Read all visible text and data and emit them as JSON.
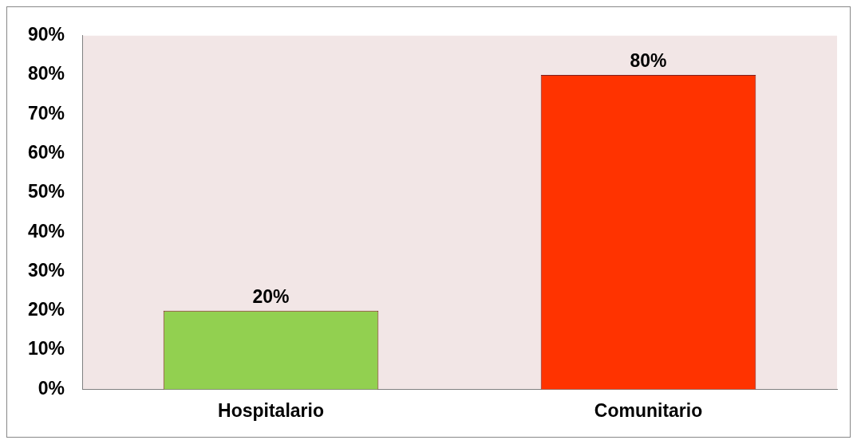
{
  "chart_data": {
    "type": "bar",
    "categories": [
      "Hospitalario",
      "Comunitario"
    ],
    "values": [
      20,
      80
    ],
    "colors": [
      "#92d050",
      "#ff3300"
    ],
    "value_labels": [
      "20%",
      "80%"
    ],
    "ylim": [
      0,
      90
    ],
    "yticks": [
      {
        "value": 0,
        "label": "0%"
      },
      {
        "value": 10,
        "label": "10%"
      },
      {
        "value": 20,
        "label": "20%"
      },
      {
        "value": 30,
        "label": "30%"
      },
      {
        "value": 40,
        "label": "40%"
      },
      {
        "value": 50,
        "label": "50%"
      },
      {
        "value": 60,
        "label": "60%"
      },
      {
        "value": 70,
        "label": "70%"
      },
      {
        "value": 80,
        "label": "80%"
      },
      {
        "value": 90,
        "label": "90%"
      }
    ],
    "grid": false,
    "legend": false
  }
}
